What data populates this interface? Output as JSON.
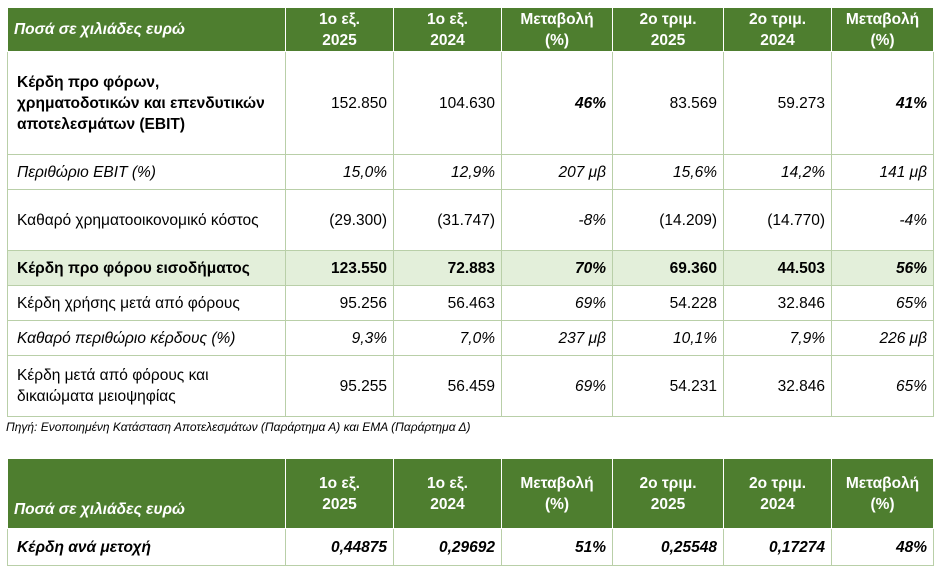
{
  "main_table": {
    "header": [
      "Ποσά σε χιλιάδες ευρώ",
      "1ο εξ.\n2025",
      "1ο εξ.\n2024",
      "Μεταβολή\n(%)",
      "2ο τριμ.\n2025",
      "2ο τριμ.\n2024",
      "Μεταβολή\n(%)"
    ],
    "header_lines": [
      [
        "Ποσά σε χιλιάδες ευρώ"
      ],
      [
        "1ο εξ.",
        "2025"
      ],
      [
        "1ο εξ.",
        "2024"
      ],
      [
        "Μεταβολή",
        "(%)"
      ],
      [
        "2ο τριμ.",
        "2025"
      ],
      [
        "2ο τριμ.",
        "2024"
      ],
      [
        "Μεταβολή",
        "(%)"
      ]
    ],
    "rows": [
      {
        "label": "Κέρδη προ φόρων, χρηματοδοτικών και επενδυτικών αποτελεσμάτων (EBIT)",
        "values": [
          "152.850",
          "104.630",
          "46%",
          "83.569",
          "59.273",
          "41%"
        ]
      },
      {
        "label": "Περιθώριο EBIT (%)",
        "values": [
          "15,0%",
          "12,9%",
          "207 μβ",
          "15,6%",
          "14,2%",
          "141 μβ"
        ]
      },
      {
        "label": "Καθαρό χρηματοοικονομικό κόστος",
        "values": [
          "(29.300)",
          "(31.747)",
          "-8%",
          "(14.209)",
          "(14.770)",
          "-4%"
        ]
      },
      {
        "label": "Κέρδη προ φόρου εισοδήματος",
        "values": [
          "123.550",
          "72.883",
          "70%",
          "69.360",
          "44.503",
          "56%"
        ]
      },
      {
        "label": "Κέρδη χρήσης μετά από φόρους",
        "values": [
          "95.256",
          "56.463",
          "69%",
          "54.228",
          "32.846",
          "65%"
        ]
      },
      {
        "label": "Καθαρό περιθώριο κέρδους (%)",
        "values": [
          "9,3%",
          "7,0%",
          "237 μβ",
          "10,1%",
          "7,9%",
          "226 μβ"
        ]
      },
      {
        "label": "Κέρδη μετά από φόρους και δικαιώματα μειοψηφίας",
        "values": [
          "95.255",
          "56.459",
          "69%",
          "54.231",
          "32.846",
          "65%"
        ]
      }
    ]
  },
  "source_note": "Πηγή: Ενοποιημένη Κατάσταση Αποτελεσμάτων (Παράρτημα Α) και ΕΜΑ (Παράρτημα Δ)",
  "eps_table": {
    "header_lines": [
      [
        "Ποσά σε χιλιάδες ευρώ"
      ],
      [
        "1ο εξ.",
        "2025"
      ],
      [
        "1ο εξ.",
        "2024"
      ],
      [
        "Μεταβολή",
        "(%)"
      ],
      [
        "2ο τριμ.",
        "2025"
      ],
      [
        "2ο τριμ.",
        "2024"
      ],
      [
        "Μεταβολή",
        "(%)"
      ]
    ],
    "rows": [
      {
        "label": "Κέρδη ανά μετοχή",
        "values": [
          "0,44875",
          "0,29692",
          "51%",
          "0,25548",
          "0,17274",
          "48%"
        ]
      }
    ]
  },
  "colors": {
    "header_bg": "#4e7e2f",
    "highlight_row_bg": "#e3efda",
    "grid": "#b9cfa8"
  }
}
